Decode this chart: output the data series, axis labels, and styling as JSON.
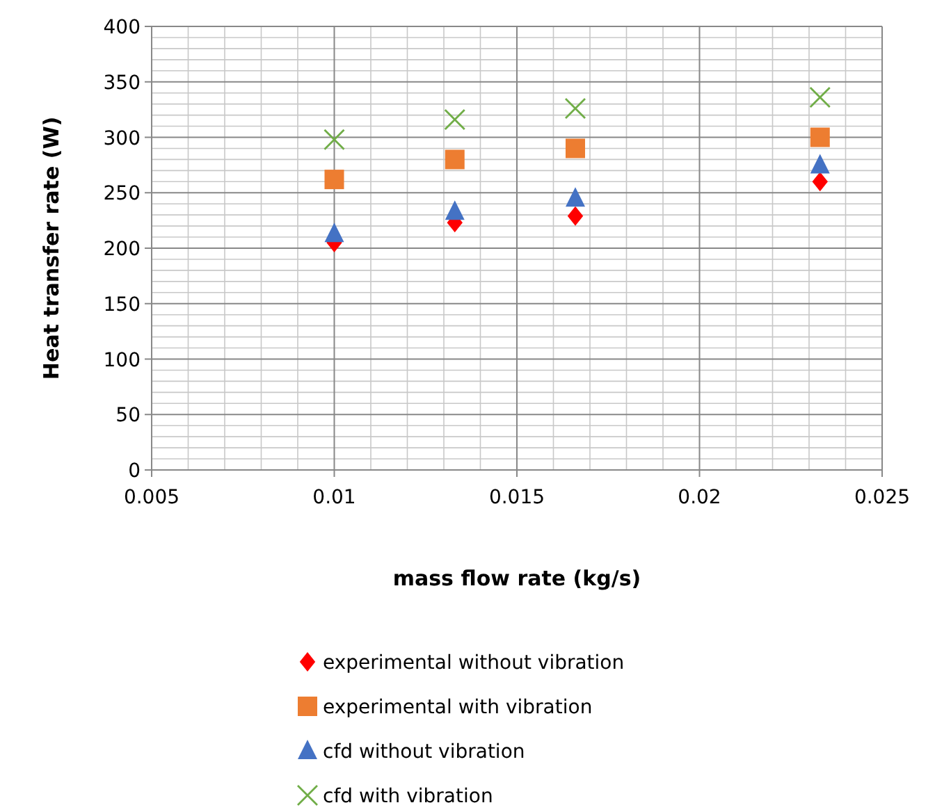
{
  "chart_data": {
    "type": "scatter",
    "xlabel": "mass flow rate (kg/s)",
    "ylabel": "Heat transfer rate (W)",
    "x": [
      0.01,
      0.0133,
      0.0166,
      0.0233
    ],
    "series": [
      {
        "name": "experimental without vibration",
        "color": "#ff0000",
        "marker": "diamond",
        "values": [
          205,
          223,
          229,
          260
        ]
      },
      {
        "name": "experimental with vibration",
        "color": "#ed7d31",
        "marker": "square",
        "values": [
          262,
          280,
          290,
          300
        ]
      },
      {
        "name": "cfd without vibration",
        "color": "#4472c4",
        "marker": "triangle",
        "values": [
          213,
          233,
          245,
          275
        ]
      },
      {
        "name": "cfd with vibration",
        "color": "#70ad47",
        "marker": "cross",
        "values": [
          298,
          316,
          326,
          336
        ]
      }
    ],
    "xlim": [
      0.005,
      0.025
    ],
    "xticks": [
      0.005,
      0.01,
      0.015,
      0.02,
      0.025
    ],
    "ylim": [
      0,
      400
    ],
    "yticks": [
      0,
      50,
      100,
      150,
      200,
      250,
      300,
      350,
      400
    ],
    "grid": true,
    "legend": "bottom"
  }
}
